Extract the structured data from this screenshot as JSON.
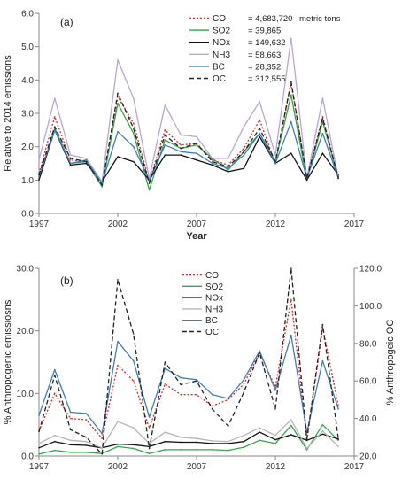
{
  "chart_data": [
    {
      "type": "line",
      "panel_label": "(a)",
      "xlabel": "Year",
      "ylabel": "Relative to 2014 emissions",
      "xlim": [
        1997,
        2017
      ],
      "ylim": [
        0,
        6
      ],
      "x_ticks": [
        "1997",
        "2002",
        "2007",
        "2012",
        "2017"
      ],
      "y_ticks": [
        "0.0",
        "1.0",
        "2.0",
        "3.0",
        "4.0",
        "5.0",
        "6.0"
      ],
      "legend_placement": "top-right",
      "legend_unit": "metric tons",
      "x": [
        1997,
        1998,
        1999,
        2000,
        2001,
        2002,
        2003,
        2004,
        2005,
        2006,
        2007,
        2008,
        2009,
        2010,
        2011,
        2012,
        2013,
        2014,
        2015,
        2016
      ],
      "series": [
        {
          "name": "CO",
          "total": "= 4,683,720",
          "color": "#e8231f",
          "dash": "dotted",
          "values": [
            1.2,
            2.9,
            1.6,
            1.55,
            0.85,
            3.5,
            2.7,
            0.95,
            2.5,
            2.05,
            2.1,
            1.6,
            1.45,
            1.95,
            2.8,
            1.5,
            3.9,
            1.05,
            2.9,
            1.1
          ]
        },
        {
          "name": "SO2",
          "total": "= 39,865",
          "color": "#2fa84a",
          "dash": "solid",
          "values": [
            1.05,
            2.55,
            1.5,
            1.55,
            0.8,
            3.3,
            2.4,
            0.7,
            2.2,
            1.95,
            2.05,
            1.65,
            1.3,
            1.85,
            2.4,
            1.55,
            3.55,
            1.0,
            2.75,
            1.05
          ]
        },
        {
          "name": "NOx",
          "total": "= 149,632",
          "color": "#111111",
          "dash": "solid",
          "values": [
            1.0,
            2.5,
            1.45,
            1.5,
            0.95,
            1.7,
            1.55,
            1.0,
            1.75,
            1.75,
            1.6,
            1.45,
            1.25,
            1.35,
            2.3,
            1.5,
            1.8,
            1.0,
            1.8,
            1.15
          ]
        },
        {
          "name": "NH3",
          "total": "= 58,663",
          "color": "#b9a6d9",
          "dash": "solid",
          "values": [
            1.6,
            3.45,
            1.75,
            1.65,
            0.95,
            4.6,
            3.45,
            1.05,
            3.25,
            2.35,
            2.3,
            1.65,
            1.65,
            2.6,
            3.35,
            1.75,
            5.25,
            1.05,
            3.45,
            1.05
          ]
        },
        {
          "name": "BC",
          "total": "= 28,352",
          "color": "#3e7ebf",
          "dash": "solid",
          "values": [
            1.1,
            2.5,
            1.5,
            1.6,
            0.9,
            2.45,
            2.0,
            1.0,
            2.05,
            1.85,
            1.8,
            1.5,
            1.35,
            1.75,
            2.4,
            1.5,
            2.75,
            1.05,
            2.4,
            1.05
          ]
        },
        {
          "name": "OC",
          "total": "= 312,555",
          "color": "#222222",
          "dash": "dashed",
          "values": [
            1.15,
            2.6,
            1.65,
            1.55,
            0.85,
            3.6,
            2.55,
            0.9,
            2.35,
            1.95,
            2.1,
            1.55,
            1.4,
            1.85,
            2.55,
            1.55,
            3.95,
            1.05,
            2.85,
            1.05
          ]
        }
      ]
    },
    {
      "type": "line",
      "panel_label": "(b)",
      "xlabel": "",
      "ylabel": "% Anthropogenic emissiosns",
      "y2label": "% Anthropogeic OC",
      "xlim": [
        1997,
        2017
      ],
      "ylim": [
        0,
        30
      ],
      "y2lim": [
        20,
        120
      ],
      "x_ticks": [
        "1997",
        "2002",
        "2007",
        "2012",
        "2017"
      ],
      "y_ticks": [
        "0.0",
        "10.0",
        "20.0",
        "30.0"
      ],
      "y2_ticks": [
        "20.0",
        "40.0",
        "60.0",
        "80.0",
        "100.0",
        "120.0"
      ],
      "legend_placement": "top-center",
      "x": [
        1997,
        1998,
        1999,
        2000,
        2001,
        2002,
        2003,
        2004,
        2005,
        2006,
        2007,
        2008,
        2009,
        2010,
        2011,
        2012,
        2013,
        2014,
        2015,
        2016
      ],
      "series": [
        {
          "name": "CO",
          "axis": "left",
          "color": "#e8231f",
          "dash": "dotted",
          "values": [
            4.0,
            10.0,
            6.0,
            5.8,
            2.8,
            14.5,
            12.0,
            4.5,
            11.5,
            9.8,
            9.8,
            8.0,
            9.0,
            11.5,
            16.5,
            11.0,
            25.0,
            2.5,
            20.5,
            8.0
          ]
        },
        {
          "name": "SO2",
          "axis": "left",
          "color": "#2fa84a",
          "dash": "solid",
          "values": [
            0.3,
            0.9,
            0.6,
            0.6,
            0.4,
            1.5,
            1.2,
            0.4,
            1.0,
            1.0,
            1.0,
            1.0,
            0.9,
            1.4,
            2.5,
            2.0,
            4.9,
            1.0,
            5.0,
            2.5
          ]
        },
        {
          "name": "NOx",
          "axis": "left",
          "color": "#111111",
          "dash": "solid",
          "values": [
            1.3,
            2.3,
            1.8,
            1.7,
            1.3,
            1.9,
            1.8,
            1.5,
            2.3,
            2.2,
            2.2,
            2.0,
            2.0,
            2.3,
            3.8,
            2.6,
            3.4,
            2.5,
            3.5,
            2.7
          ]
        },
        {
          "name": "NH3",
          "axis": "left",
          "color": "#b5b5b5",
          "dash": "solid",
          "values": [
            2.0,
            3.3,
            2.5,
            2.3,
            1.3,
            5.5,
            4.5,
            2.0,
            3.8,
            3.0,
            2.8,
            2.4,
            2.3,
            3.3,
            4.5,
            3.3,
            5.8,
            1.2,
            4.0,
            1.5
          ]
        },
        {
          "name": "BC",
          "axis": "left",
          "color": "#3e7ebf",
          "dash": "solid",
          "values": [
            6.5,
            13.8,
            7.0,
            6.8,
            3.6,
            18.3,
            15.2,
            6.2,
            14.0,
            12.5,
            12.2,
            9.8,
            9.2,
            12.2,
            16.8,
            10.5,
            19.3,
            3.8,
            15.2,
            7.5
          ]
        },
        {
          "name": "OC",
          "axis": "right",
          "color": "#222222",
          "dash": "dashed",
          "values": [
            33,
            63,
            34,
            30,
            21,
            114,
            85,
            24,
            70,
            58,
            60,
            45,
            36,
            54,
            75,
            45,
            120,
            29,
            90,
            29
          ]
        }
      ]
    }
  ]
}
